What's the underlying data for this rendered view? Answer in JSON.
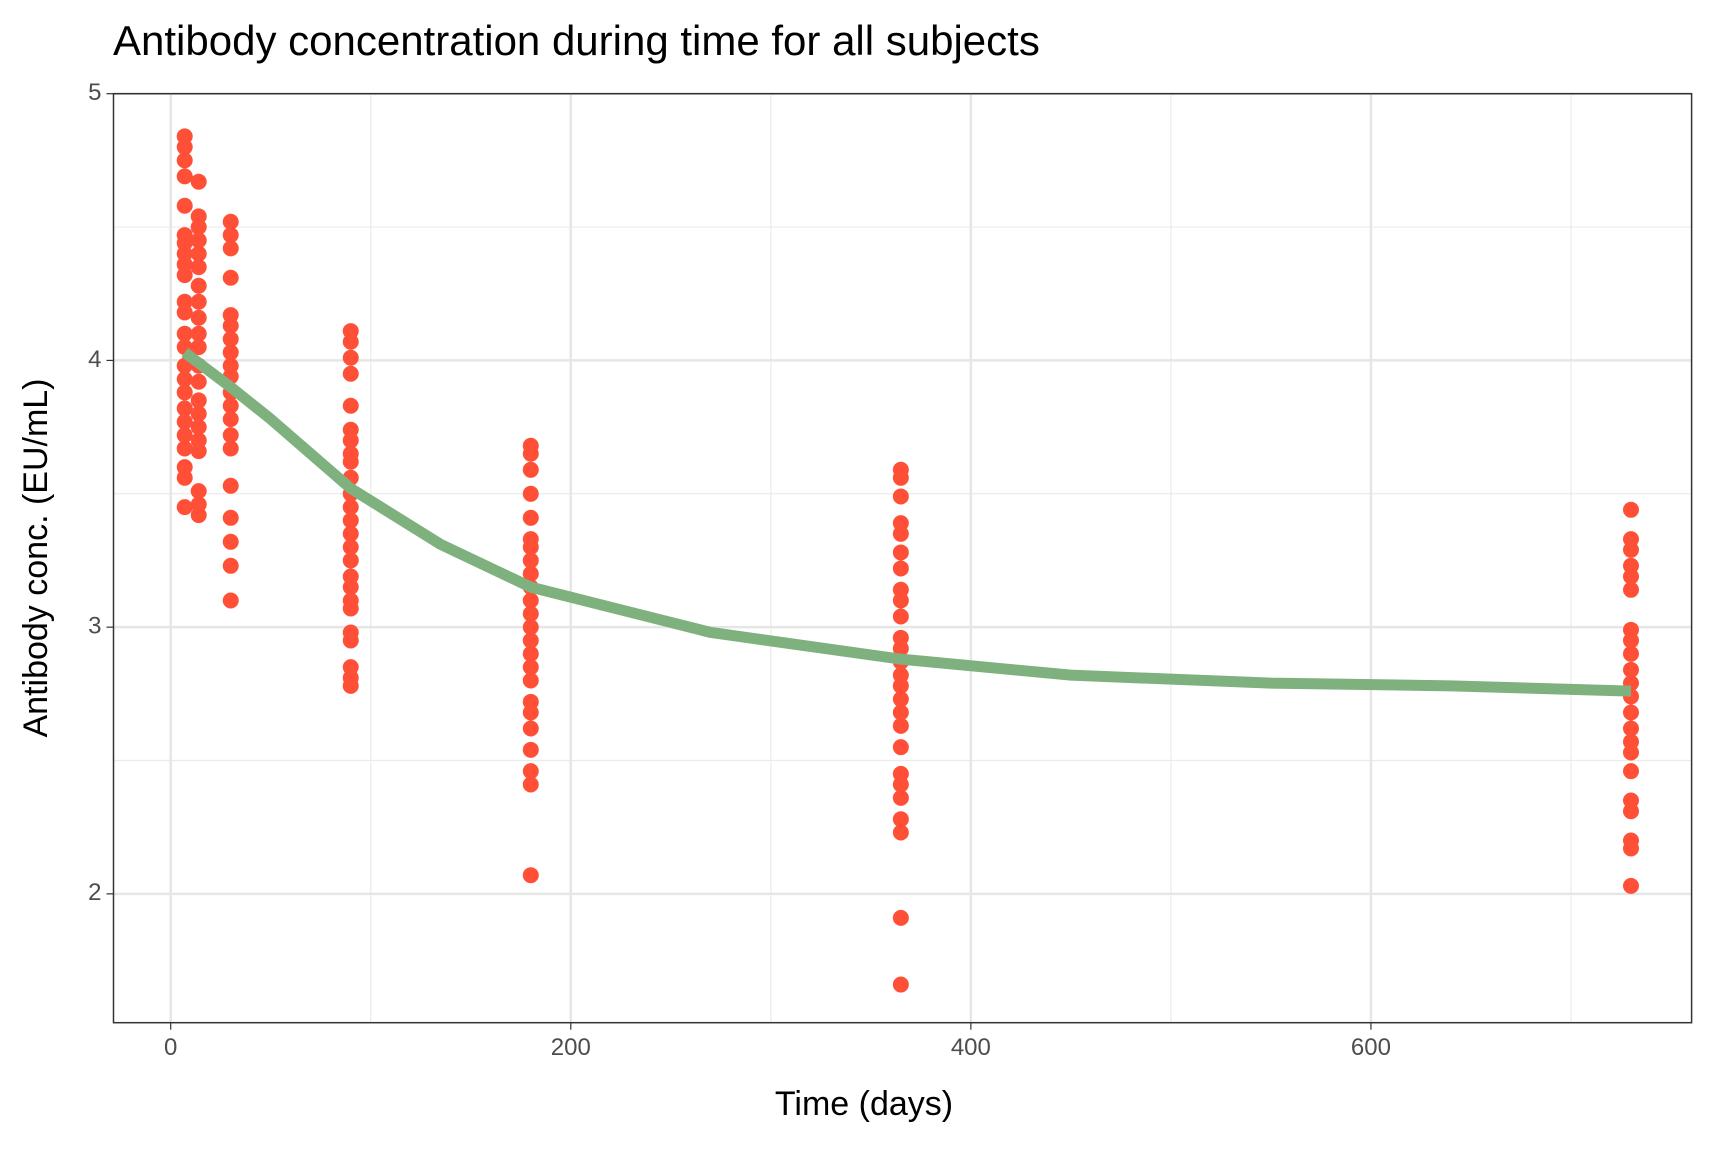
{
  "chart_data": {
    "type": "scatter",
    "title": "Antibody concentration during time for all subjects",
    "x_label": "Time (days)",
    "y_label": "Antibody conc. (EU/mL)",
    "xlim": [
      -28.6,
      760.3
    ],
    "ylim": [
      1.517,
      5
    ],
    "xticks": [
      0,
      200,
      400,
      600
    ],
    "yticks": [
      2,
      3,
      4,
      5
    ],
    "xminor": [
      100,
      300,
      500,
      700
    ],
    "yminor": [
      2.5,
      3.5,
      4.5
    ],
    "grid": true,
    "points": {
      "color": "#ff5037",
      "groups": [
        {
          "x": 7,
          "values": [
            4.84,
            4.8,
            4.75,
            4.69,
            4.58,
            4.47,
            4.44,
            4.4,
            4.36,
            4.32,
            4.22,
            4.18,
            4.1,
            4.05,
            3.98,
            3.93,
            3.88,
            3.82,
            3.77,
            3.72,
            3.67,
            3.6,
            3.56,
            3.45
          ]
        },
        {
          "x": 14,
          "values": [
            4.67,
            4.54,
            4.5,
            4.45,
            4.4,
            4.35,
            4.28,
            4.22,
            4.16,
            4.1,
            4.05,
            3.98,
            3.92,
            3.85,
            3.8,
            3.75,
            3.7,
            3.66,
            3.51,
            3.46,
            3.42
          ]
        },
        {
          "x": 30,
          "values": [
            4.52,
            4.47,
            4.42,
            4.31,
            4.17,
            4.13,
            4.08,
            4.03,
            3.98,
            3.94,
            3.88,
            3.83,
            3.78,
            3.72,
            3.67,
            3.53,
            3.41,
            3.32,
            3.23,
            3.1
          ]
        },
        {
          "x": 90,
          "values": [
            4.11,
            4.07,
            4.01,
            3.95,
            3.83,
            3.74,
            3.7,
            3.65,
            3.62,
            3.56,
            3.5,
            3.45,
            3.4,
            3.35,
            3.3,
            3.25,
            3.19,
            3.15,
            3.1,
            3.07,
            2.98,
            2.95,
            2.85,
            2.81,
            2.78
          ]
        },
        {
          "x": 180,
          "values": [
            3.68,
            3.65,
            3.59,
            3.5,
            3.41,
            3.33,
            3.3,
            3.25,
            3.2,
            3.15,
            3.1,
            3.05,
            3.0,
            2.95,
            2.9,
            2.85,
            2.8,
            2.72,
            2.68,
            2.62,
            2.54,
            2.46,
            2.41,
            2.07
          ]
        },
        {
          "x": 365,
          "values": [
            3.59,
            3.56,
            3.49,
            3.39,
            3.35,
            3.28,
            3.22,
            3.14,
            3.1,
            3.04,
            2.96,
            2.92,
            2.87,
            2.82,
            2.78,
            2.73,
            2.68,
            2.63,
            2.55,
            2.45,
            2.41,
            2.36,
            2.28,
            2.23,
            1.91,
            1.66
          ]
        },
        {
          "x": 730,
          "values": [
            3.44,
            3.33,
            3.29,
            3.23,
            3.19,
            3.14,
            2.99,
            2.95,
            2.9,
            2.84,
            2.79,
            2.74,
            2.68,
            2.62,
            2.57,
            2.53,
            2.46,
            2.35,
            2.31,
            2.2,
            2.17,
            2.03
          ]
        }
      ]
    },
    "fit": {
      "color": "#7fb17f",
      "x": [
        7,
        30,
        50,
        90,
        135,
        180,
        270,
        365,
        450,
        550,
        640,
        730
      ],
      "values": [
        4.03,
        3.9,
        3.78,
        3.52,
        3.31,
        3.15,
        2.98,
        2.88,
        2.82,
        2.79,
        2.78,
        2.76
      ]
    }
  }
}
